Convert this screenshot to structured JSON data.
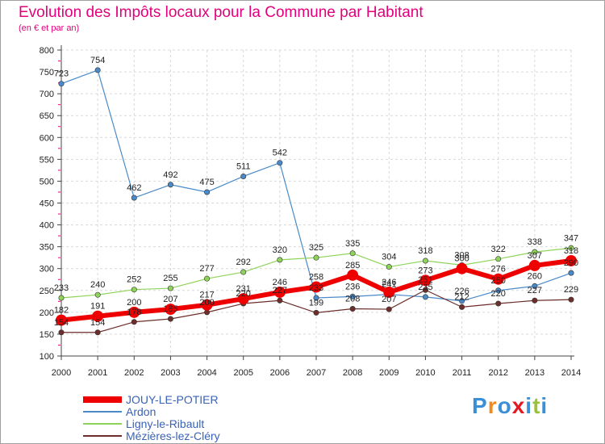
{
  "title": "Evolution des Impôts locaux pour la Commune par Habitant",
  "subtitle": "(en € et par an)",
  "logo": {
    "letters": [
      "P",
      "r",
      "o",
      "x",
      "i",
      "t",
      "i"
    ],
    "colors": [
      "#3a8fd6",
      "#f08a1c",
      "#3a8fd6",
      "#e21b23",
      "#3a8fd6",
      "#9ac23c",
      "#3a8fd6"
    ]
  },
  "chart_data": {
    "type": "line",
    "title": "Evolution des Impôts locaux pour la Commune par Habitant",
    "subtitle": "(en € et par an)",
    "x": [
      "2000",
      "2001",
      "2002",
      "2003",
      "2004",
      "2005",
      "2006",
      "2007",
      "2008",
      "2009",
      "2010",
      "2011",
      "2012",
      "2013",
      "2014"
    ],
    "ylim": [
      100,
      800
    ],
    "yticks": [
      "100",
      "150",
      "200",
      "250",
      "300",
      "350",
      "400",
      "450",
      "500",
      "550",
      "600",
      "650",
      "700",
      "750",
      "800"
    ],
    "grid": true,
    "legend_position": "bottom-left",
    "series": [
      {
        "name": "Ardon",
        "color": "#4a8ac9",
        "width": 1.2,
        "marker": 3.2,
        "values": [
          723,
          754,
          462,
          492,
          475,
          511,
          542,
          233,
          236,
          241,
          235,
          226,
          250,
          260,
          290
        ],
        "labels": [
          "723",
          "754",
          "462",
          "492",
          "475",
          "511",
          "542",
          "233",
          "236",
          "241",
          "235",
          "226",
          "250",
          "260",
          "290"
        ]
      },
      {
        "name": "Ligny-le-Ribault",
        "color": "#8fd45a",
        "width": 1.2,
        "marker": 3.2,
        "values": [
          233,
          240,
          252,
          255,
          277,
          292,
          320,
          325,
          335,
          304,
          318,
          308,
          322,
          338,
          347
        ],
        "labels": [
          "233",
          "240",
          "252",
          "255",
          "277",
          "292",
          "320",
          "325",
          "335",
          "304",
          "318",
          "308",
          "322",
          "338",
          "347"
        ]
      },
      {
        "name": "Mézières-lez-Cléry",
        "color": "#6b2e2a",
        "width": 1.2,
        "marker": 3.2,
        "values": [
          154,
          154,
          178,
          185,
          200,
          220,
          227,
          199,
          208,
          207,
          251,
          212,
          220,
          227,
          229
        ],
        "labels": [
          "154",
          "154",
          "178",
          "185",
          "200",
          "220",
          "227",
          "199",
          "208",
          "207",
          "251",
          "212",
          "220",
          "227",
          "229"
        ]
      },
      {
        "name": "JOUY-LE-POTIER",
        "color": "#ee0000",
        "width": 6,
        "marker": 7,
        "values": [
          182,
          191,
          200,
          207,
          217,
          231,
          246,
          258,
          285,
          246,
          273,
          300,
          276,
          307,
          318
        ],
        "labels": [
          "182",
          "191",
          "200",
          "207",
          "217",
          "231",
          "246",
          "258",
          "285",
          "246",
          "273",
          "300",
          "276",
          "307",
          "318"
        ]
      }
    ],
    "legend": [
      "JOUY-LE-POTIER",
      "Ardon",
      "Ligny-le-Ribault",
      "Mézières-lez-Cléry"
    ]
  }
}
